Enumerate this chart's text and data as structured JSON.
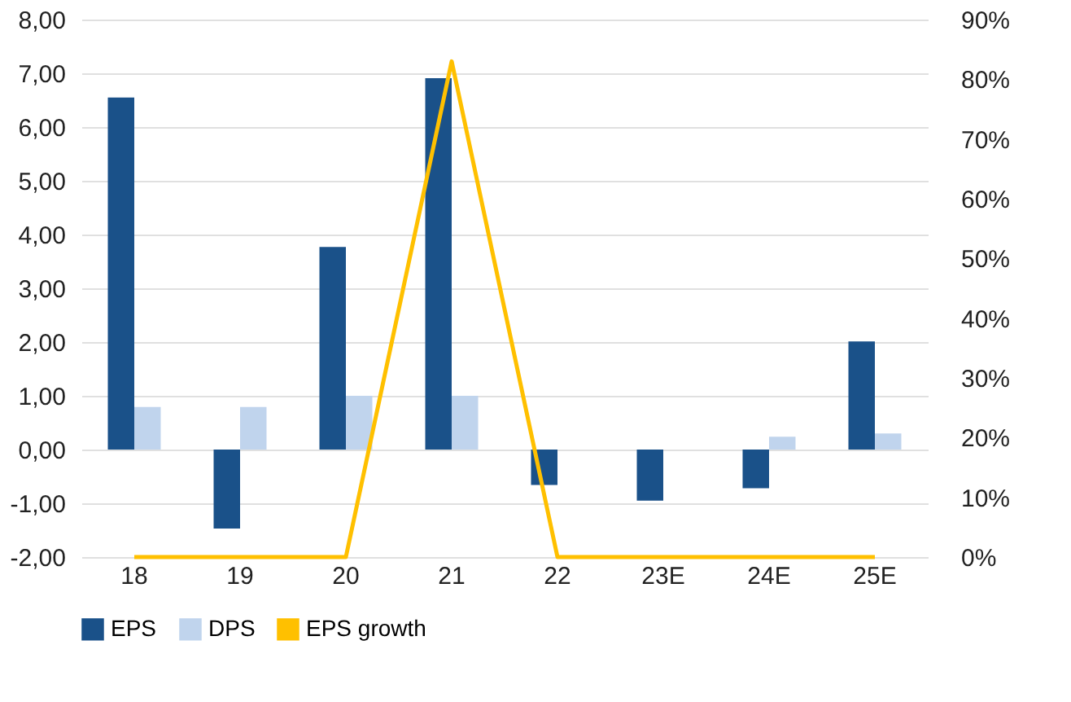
{
  "chart_data": {
    "type": "bar",
    "categories": [
      "18",
      "19",
      "20",
      "21",
      "22",
      "23E",
      "24E",
      "25E"
    ],
    "series": [
      {
        "name": "EPS",
        "color": "#1a5189",
        "values": [
          6.55,
          -1.47,
          3.77,
          6.91,
          -0.66,
          -0.95,
          -0.72,
          2.01
        ]
      },
      {
        "name": "DPS",
        "color": "#c0d4ed",
        "values": [
          0.79,
          0.79,
          1.0,
          1.0,
          0,
          0,
          0.24,
          0.3
        ]
      },
      {
        "name": "EPS growth",
        "color": "#ffc000",
        "type": "line",
        "axis": "y2",
        "values": [
          0,
          0,
          0,
          83,
          0,
          0,
          0,
          0
        ]
      }
    ],
    "ylim": [
      -2,
      8
    ],
    "yticks": [
      {
        "value": -2,
        "label": "-2,00"
      },
      {
        "value": -1,
        "label": "-1,00"
      },
      {
        "value": 0,
        "label": "0,00"
      },
      {
        "value": 1,
        "label": "1,00"
      },
      {
        "value": 2,
        "label": "2,00"
      },
      {
        "value": 3,
        "label": "3,00"
      },
      {
        "value": 4,
        "label": "4,00"
      },
      {
        "value": 5,
        "label": "5,00"
      },
      {
        "value": 6,
        "label": "6,00"
      },
      {
        "value": 7,
        "label": "7,00"
      },
      {
        "value": 8,
        "label": "8,00"
      }
    ],
    "y2lim": [
      0,
      90
    ],
    "y2ticks": [
      {
        "value": 0,
        "label": "0%"
      },
      {
        "value": 10,
        "label": "10%"
      },
      {
        "value": 20,
        "label": "20%"
      },
      {
        "value": 30,
        "label": "30%"
      },
      {
        "value": 40,
        "label": "40%"
      },
      {
        "value": 50,
        "label": "50%"
      },
      {
        "value": 60,
        "label": "60%"
      },
      {
        "value": 70,
        "label": "70%"
      },
      {
        "value": 80,
        "label": "80%"
      },
      {
        "value": 90,
        "label": "90%"
      }
    ],
    "grid": "y",
    "legend": "bottom"
  }
}
